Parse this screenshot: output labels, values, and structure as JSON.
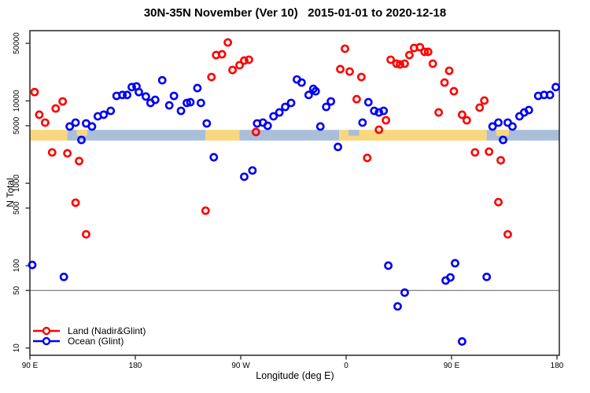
{
  "chart_data": {
    "type": "scatter",
    "title": "30N-35N November (Ver 10)   2015-01-01 to 2020-12-18",
    "xlabel": "Longitude (deg E)",
    "ylabel": "N Total",
    "x_axis": {
      "unit": "deg E (wrapping eastward from 90E through 180, 90W, 0, 90E to 180)",
      "range_deg": [
        90,
        540
      ],
      "ticks": [
        {
          "lon": 90,
          "label": "90 E"
        },
        {
          "lon": 180,
          "label": "180"
        },
        {
          "lon": 270,
          "label": "90 W"
        },
        {
          "lon": 360,
          "label": "0"
        },
        {
          "lon": 450,
          "label": "90 E"
        },
        {
          "lon": 540,
          "label": "180"
        }
      ]
    },
    "y_axis": {
      "scale": "log",
      "range": [
        8,
        72000
      ],
      "ticks": [
        10,
        50,
        100,
        500,
        1000,
        5000,
        10000,
        50000
      ]
    },
    "grid": "off",
    "hline": {
      "value": 50,
      "color": "#7f7f7f"
    },
    "band": {
      "description": "land/ocean strip along 30N-35N drawn across the plot near N=3300-4500",
      "land_color": "#F8D77E",
      "ocean_color": "#A9BED9",
      "segments": [
        {
          "type": "land",
          "from": 90,
          "to": 122
        },
        {
          "type": "ocean",
          "from": 122,
          "to": 240
        },
        {
          "type": "land",
          "from": 240,
          "to": 269
        },
        {
          "type": "ocean",
          "from": 269,
          "to": 354
        },
        {
          "type": "land",
          "from": 354,
          "to": 480
        },
        {
          "type": "ocean",
          "from": 480,
          "to": 540
        }
      ],
      "patches": [
        {
          "type": "land",
          "from": 130,
          "to": 139
        },
        {
          "type": "ocean",
          "from": 362,
          "to": 371
        },
        {
          "type": "land",
          "from": 488,
          "to": 499
        }
      ]
    },
    "legend_position": "bottom-left",
    "series": [
      {
        "name": "Land (Nadir&Glint)",
        "color": "#FF0000",
        "marker": "open-circle",
        "points": [
          [
            94,
            12800
          ],
          [
            98,
            6800
          ],
          [
            103,
            5450
          ],
          [
            109,
            2370
          ],
          [
            112,
            8090
          ],
          [
            118,
            9860
          ],
          [
            122,
            2310
          ],
          [
            129,
            580
          ],
          [
            132,
            1860
          ],
          [
            138,
            240
          ],
          [
            240,
            465
          ],
          [
            245,
            19500
          ],
          [
            249,
            36000
          ],
          [
            254,
            36800
          ],
          [
            259,
            51200
          ],
          [
            263,
            23700
          ],
          [
            269,
            27100
          ],
          [
            273,
            30900
          ],
          [
            277,
            31600
          ],
          [
            283,
            4190
          ],
          [
            355,
            24300
          ],
          [
            359,
            43000
          ],
          [
            363,
            22700
          ],
          [
            369,
            10500
          ],
          [
            373,
            19500
          ],
          [
            378,
            2030
          ],
          [
            388,
            4470
          ],
          [
            394,
            5820
          ],
          [
            398,
            31600
          ],
          [
            403,
            28300
          ],
          [
            406,
            27700
          ],
          [
            410,
            28300
          ],
          [
            414,
            36000
          ],
          [
            418,
            43900
          ],
          [
            423,
            44900
          ],
          [
            427,
            39400
          ],
          [
            430,
            39400
          ],
          [
            434,
            28300
          ],
          [
            439,
            7240
          ],
          [
            444,
            16700
          ],
          [
            448,
            23200
          ],
          [
            452,
            13100
          ],
          [
            459,
            6800
          ],
          [
            463,
            5820
          ],
          [
            470,
            2370
          ],
          [
            474,
            8280
          ],
          [
            478,
            10100
          ],
          [
            482,
            2420
          ],
          [
            490,
            590
          ],
          [
            492,
            1900
          ],
          [
            498,
            240
          ]
        ]
      },
      {
        "name": "Ocean (Glint)",
        "color": "#0000F5",
        "marker": "open-circle",
        "points": [
          [
            92,
            102
          ],
          [
            119,
            73
          ],
          [
            124,
            4890
          ],
          [
            129,
            5450
          ],
          [
            134,
            3360
          ],
          [
            138,
            5330
          ],
          [
            143,
            4890
          ],
          [
            148,
            6500
          ],
          [
            153,
            6800
          ],
          [
            159,
            7570
          ],
          [
            164,
            11500
          ],
          [
            169,
            11800
          ],
          [
            173,
            11800
          ],
          [
            177,
            14700
          ],
          [
            181,
            15000
          ],
          [
            183,
            12800
          ],
          [
            189,
            11300
          ],
          [
            193,
            9440
          ],
          [
            197,
            10300
          ],
          [
            203,
            17800
          ],
          [
            209,
            8830
          ],
          [
            213,
            11500
          ],
          [
            219,
            7570
          ],
          [
            224,
            9440
          ],
          [
            227,
            9640
          ],
          [
            233,
            14300
          ],
          [
            236,
            9440
          ],
          [
            241,
            5330
          ],
          [
            247,
            2070
          ],
          [
            273,
            1200
          ],
          [
            280,
            1430
          ],
          [
            284,
            5330
          ],
          [
            289,
            5450
          ],
          [
            293,
            4990
          ],
          [
            298,
            6500
          ],
          [
            303,
            7240
          ],
          [
            308,
            8450
          ],
          [
            313,
            9440
          ],
          [
            318,
            18200
          ],
          [
            322,
            16700
          ],
          [
            328,
            11800
          ],
          [
            332,
            14000
          ],
          [
            334,
            13100
          ],
          [
            338,
            4890
          ],
          [
            343,
            8450
          ],
          [
            347,
            9860
          ],
          [
            353,
            2760
          ],
          [
            374,
            5450
          ],
          [
            379,
            9640
          ],
          [
            384,
            7570
          ],
          [
            388,
            7240
          ],
          [
            392,
            7570
          ],
          [
            396,
            100
          ],
          [
            404,
            32
          ],
          [
            410,
            47
          ],
          [
            445,
            66
          ],
          [
            449,
            72
          ],
          [
            453,
            107
          ],
          [
            459,
            12
          ],
          [
            480,
            73
          ],
          [
            485,
            4890
          ],
          [
            490,
            5450
          ],
          [
            494,
            3360
          ],
          [
            498,
            5450
          ],
          [
            502,
            4890
          ],
          [
            508,
            6500
          ],
          [
            512,
            7240
          ],
          [
            516,
            7740
          ],
          [
            524,
            11500
          ],
          [
            529,
            11800
          ],
          [
            534,
            11800
          ],
          [
            539,
            14700
          ]
        ]
      }
    ]
  }
}
